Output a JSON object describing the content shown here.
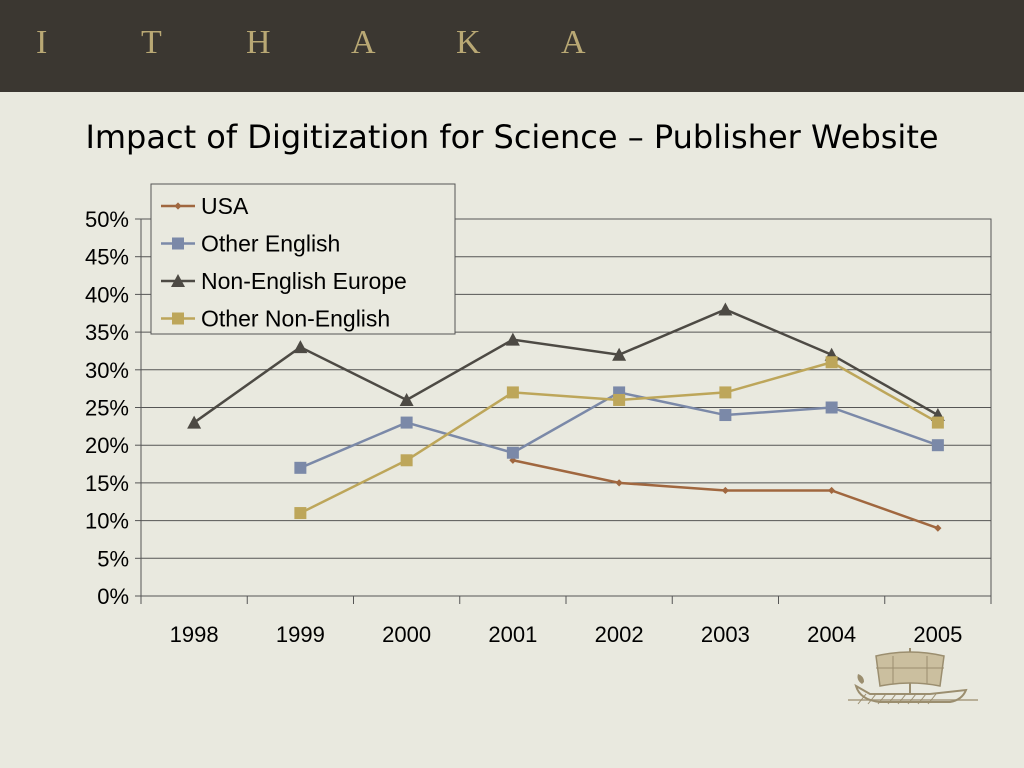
{
  "header": {
    "logo_letters": [
      "I",
      "T",
      "H",
      "A",
      "K",
      "A"
    ],
    "logo_color": "#b9a874",
    "bar_color": "#3b3731"
  },
  "slide": {
    "title": "Impact of Digitization for Science – Publisher Website",
    "background": "#e9e9df",
    "decoration": "ship-icon"
  },
  "chart_data": {
    "type": "line",
    "title": "",
    "xlabel": "",
    "ylabel": "",
    "categories": [
      "1998",
      "1999",
      "2000",
      "2001",
      "2002",
      "2003",
      "2004",
      "2005"
    ],
    "ylim": [
      0,
      50
    ],
    "ytick_step": 5,
    "y_format": "percent",
    "grid": true,
    "legend_position": "top-left",
    "series": [
      {
        "name": "USA",
        "color": "#a0673f",
        "marker": "diamond",
        "values": [
          null,
          null,
          null,
          18,
          15,
          14,
          14,
          9
        ]
      },
      {
        "name": "Other English",
        "color": "#7b89a8",
        "marker": "square",
        "values": [
          null,
          17,
          23,
          19,
          27,
          24,
          25,
          20
        ]
      },
      {
        "name": "Non-English Europe",
        "color": "#4d4a44",
        "marker": "triangle",
        "values": [
          23,
          33,
          26,
          34,
          32,
          38,
          32,
          24
        ]
      },
      {
        "name": "Other Non-English",
        "color": "#bda65a",
        "marker": "square",
        "values": [
          null,
          11,
          18,
          27,
          26,
          27,
          31,
          23
        ]
      }
    ]
  }
}
